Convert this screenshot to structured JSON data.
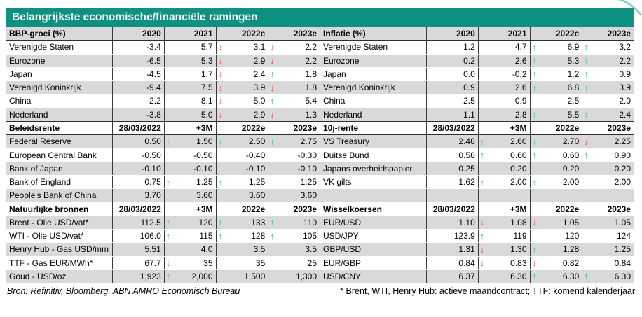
{
  "title": "Belangrijkste economische/financiële ramingen",
  "footer": {
    "source": "Bron: Refinitiv, Bloomberg, ABN AMRO Economisch Bureau",
    "note": "* Brent, WTI, Henry Hub: actieve maandcontract; TTF: komend kalenderjaar"
  },
  "icons": {
    "up": "↑",
    "down": "↓"
  },
  "colors": {
    "title_bg": "#0e9181",
    "stripe_gray": "#d9d9d9",
    "border_dark": "#2f2f2f",
    "arrow_up_green": "#3fbd8e",
    "arrow_down_red": "#f2564c",
    "decor_arc_teal": "#7ccfc6"
  },
  "halves": [
    {
      "sections": [
        {
          "title": "BBP-groei (%)",
          "cols": [
            "2020",
            "2021",
            "2022e",
            "2023e"
          ],
          "rows": [
            {
              "label": "Verenigde Staten",
              "cells": [
                {
                  "v": "-3.4"
                },
                {
                  "v": "5.7"
                },
                {
                  "v": "3.1",
                  "a": "down"
                },
                {
                  "v": "2.2",
                  "a": "down"
                }
              ]
            },
            {
              "label": "Eurozone",
              "cells": [
                {
                  "v": "-6.5"
                },
                {
                  "v": "5.3"
                },
                {
                  "v": "2.9",
                  "a": "down"
                },
                {
                  "v": "2.2",
                  "a": "down"
                }
              ]
            },
            {
              "label": "Japan",
              "cells": [
                {
                  "v": "-4.5"
                },
                {
                  "v": "1.7"
                },
                {
                  "v": "2.4",
                  "a": "down"
                },
                {
                  "v": "1.8",
                  "a": "up"
                }
              ]
            },
            {
              "label": "Verenigd Koninkrijk",
              "cells": [
                {
                  "v": "-9.4"
                },
                {
                  "v": "7.5"
                },
                {
                  "v": "3.9",
                  "a": "down"
                },
                {
                  "v": "1.8",
                  "a": "down"
                }
              ]
            },
            {
              "label": "China",
              "cells": [
                {
                  "v": "2.2"
                },
                {
                  "v": "8.1"
                },
                {
                  "v": "5.0",
                  "a": "down"
                },
                {
                  "v": "5.4",
                  "a": "up"
                }
              ]
            },
            {
              "label": "Nederland",
              "cells": [
                {
                  "v": "-3.8"
                },
                {
                  "v": "5.0"
                },
                {
                  "v": "2.9",
                  "a": "down"
                },
                {
                  "v": "1.3",
                  "a": "down"
                }
              ]
            }
          ]
        },
        {
          "title": "Beleidsrente",
          "cols": [
            "28/03/2022",
            "+3M",
            "2022e",
            "2023e"
          ],
          "rows": [
            {
              "label": "Federal Reserve",
              "cells": [
                {
                  "v": "0.50"
                },
                {
                  "v": "1.50",
                  "a": "up"
                },
                {
                  "v": "2.50",
                  "a": "up"
                },
                {
                  "v": "2.75",
                  "a": "up"
                }
              ]
            },
            {
              "label": "European Central Bank",
              "cells": [
                {
                  "v": "-0.50"
                },
                {
                  "v": "-0.50"
                },
                {
                  "v": "-0.40"
                },
                {
                  "v": "-0.30"
                }
              ]
            },
            {
              "label": "Bank of Japan",
              "cells": [
                {
                  "v": "-0.10"
                },
                {
                  "v": "-0.10"
                },
                {
                  "v": "-0.10"
                },
                {
                  "v": "-0.10"
                }
              ]
            },
            {
              "label": "Bank of England",
              "cells": [
                {
                  "v": "0.75"
                },
                {
                  "v": "1.25",
                  "a": "up"
                },
                {
                  "v": "1.25",
                  "a": "up"
                },
                {
                  "v": "1.25"
                }
              ]
            },
            {
              "label": "People's Bank of China",
              "cells": [
                {
                  "v": "3.70"
                },
                {
                  "v": "3.60"
                },
                {
                  "v": "3.60"
                },
                {
                  "v": "3.60"
                }
              ]
            }
          ]
        },
        {
          "title": "Natuurlijke bronnen",
          "cols": [
            "28/03/2022",
            "+3M",
            "2022e",
            "2023e"
          ],
          "rows": [
            {
              "label": "Brent - Olie USD/vat*",
              "cells": [
                {
                  "v": "112.5"
                },
                {
                  "v": "120",
                  "a": "up"
                },
                {
                  "v": "133",
                  "a": "up"
                },
                {
                  "v": "110",
                  "a": "up"
                }
              ]
            },
            {
              "label": "WTI - Olie USD/vat*",
              "cells": [
                {
                  "v": "106.0"
                },
                {
                  "v": "115",
                  "a": "up"
                },
                {
                  "v": "128",
                  "a": "up"
                },
                {
                  "v": "105",
                  "a": "up"
                }
              ]
            },
            {
              "label": "Henry Hub - Gas USD/mm",
              "cells": [
                {
                  "v": "5.51"
                },
                {
                  "v": "4.0"
                },
                {
                  "v": "3.5"
                },
                {
                  "v": "3.5"
                }
              ]
            },
            {
              "label": "TTF - Gas EUR/MWh*",
              "cells": [
                {
                  "v": "67.7"
                },
                {
                  "v": "35",
                  "a": "down"
                },
                {
                  "v": "35"
                },
                {
                  "v": "25"
                }
              ]
            },
            {
              "label": "Goud - USD/oz",
              "cells": [
                {
                  "v": "1,923"
                },
                {
                  "v": "2,000",
                  "a": "up"
                },
                {
                  "v": "1,500"
                },
                {
                  "v": "1,300"
                }
              ]
            }
          ]
        }
      ]
    },
    {
      "sections": [
        {
          "title": "Inflatie (%)",
          "cols": [
            "2020",
            "2021",
            "2022e",
            "2023e"
          ],
          "rows": [
            {
              "label": "Verenigde Staten",
              "cells": [
                {
                  "v": "1.2"
                },
                {
                  "v": "4.7"
                },
                {
                  "v": "6.9",
                  "a": "up"
                },
                {
                  "v": "3,2",
                  "a": "up"
                }
              ]
            },
            {
              "label": "Eurozone",
              "cells": [
                {
                  "v": "0.2"
                },
                {
                  "v": "2.6"
                },
                {
                  "v": "5.3",
                  "a": "up"
                },
                {
                  "v": "2.2",
                  "a": "up"
                }
              ]
            },
            {
              "label": "Japan",
              "cells": [
                {
                  "v": "0.0"
                },
                {
                  "v": "-0.2"
                },
                {
                  "v": "1.2",
                  "a": "up"
                },
                {
                  "v": "0.9",
                  "a": "up"
                }
              ]
            },
            {
              "label": "Verenigd Koninkrijk",
              "cells": [
                {
                  "v": "0.9"
                },
                {
                  "v": "2.6"
                },
                {
                  "v": "6.8",
                  "a": "up"
                },
                {
                  "v": "3.9",
                  "a": "up"
                }
              ]
            },
            {
              "label": "China",
              "cells": [
                {
                  "v": "2.5"
                },
                {
                  "v": "0.9"
                },
                {
                  "v": "2.5"
                },
                {
                  "v": "2.0"
                }
              ]
            },
            {
              "label": "Nederland",
              "cells": [
                {
                  "v": "1.1"
                },
                {
                  "v": "2.8"
                },
                {
                  "v": "5.5",
                  "a": "up"
                },
                {
                  "v": "2.4",
                  "a": "up"
                }
              ]
            }
          ]
        },
        {
          "title": "10j-rente",
          "cols": [
            "28/03/2022",
            "+3M",
            "2022e",
            "2023e"
          ],
          "rows": [
            {
              "label": "VS Treasury",
              "cells": [
                {
                  "v": "2.48"
                },
                {
                  "v": "2.60",
                  "a": "up"
                },
                {
                  "v": "2.70",
                  "a": "up"
                },
                {
                  "v": "2.25",
                  "a": "down"
                }
              ]
            },
            {
              "label": "Duitse Bund",
              "cells": [
                {
                  "v": "0.58"
                },
                {
                  "v": "0.60",
                  "a": "up"
                },
                {
                  "v": "0.60",
                  "a": "up"
                },
                {
                  "v": "0.90",
                  "a": "up"
                }
              ]
            },
            {
              "label": "Japans overheidspapier",
              "cells": [
                {
                  "v": "0.25"
                },
                {
                  "v": "0.20"
                },
                {
                  "v": "0.20"
                },
                {
                  "v": "0.20"
                }
              ]
            },
            {
              "label": "VK gilts",
              "cells": [
                {
                  "v": "1.62"
                },
                {
                  "v": "2.00",
                  "a": "up"
                },
                {
                  "v": "2.00",
                  "a": "up"
                },
                {
                  "v": "2.00"
                }
              ]
            },
            {
              "label": "",
              "cells": [
                {
                  "v": ""
                },
                {
                  "v": ""
                },
                {
                  "v": ""
                },
                {
                  "v": ""
                }
              ]
            }
          ]
        },
        {
          "title": "Wisselkoersen",
          "cols": [
            "28/03/2022",
            "+3M",
            "2022e",
            "2023e"
          ],
          "rows": [
            {
              "label": "EUR/USD",
              "cells": [
                {
                  "v": "1.10"
                },
                {
                  "v": "1.08",
                  "a": "down"
                },
                {
                  "v": "1.05",
                  "a": "down"
                },
                {
                  "v": "1.05"
                }
              ]
            },
            {
              "label": "USD/JPY",
              "cells": [
                {
                  "v": "123.9"
                },
                {
                  "v": "119",
                  "a": "up"
                },
                {
                  "v": "120"
                },
                {
                  "v": "124"
                }
              ]
            },
            {
              "label": "GBP/USD",
              "cells": [
                {
                  "v": "1.31"
                },
                {
                  "v": "1.30",
                  "a": "down"
                },
                {
                  "v": "1.28",
                  "a": "up"
                },
                {
                  "v": "1.25"
                }
              ]
            },
            {
              "label": "EUR/GBP",
              "cells": [
                {
                  "v": "0.84"
                },
                {
                  "v": "0.83",
                  "a": "down"
                },
                {
                  "v": "0.82",
                  "a": "down"
                },
                {
                  "v": "0.84"
                }
              ]
            },
            {
              "label": "USD/CNY",
              "cells": [
                {
                  "v": "6.37"
                },
                {
                  "v": "6.30"
                },
                {
                  "v": "6.30",
                  "a": "up"
                },
                {
                  "v": "6.30",
                  "a": "up"
                }
              ]
            }
          ]
        }
      ]
    }
  ]
}
